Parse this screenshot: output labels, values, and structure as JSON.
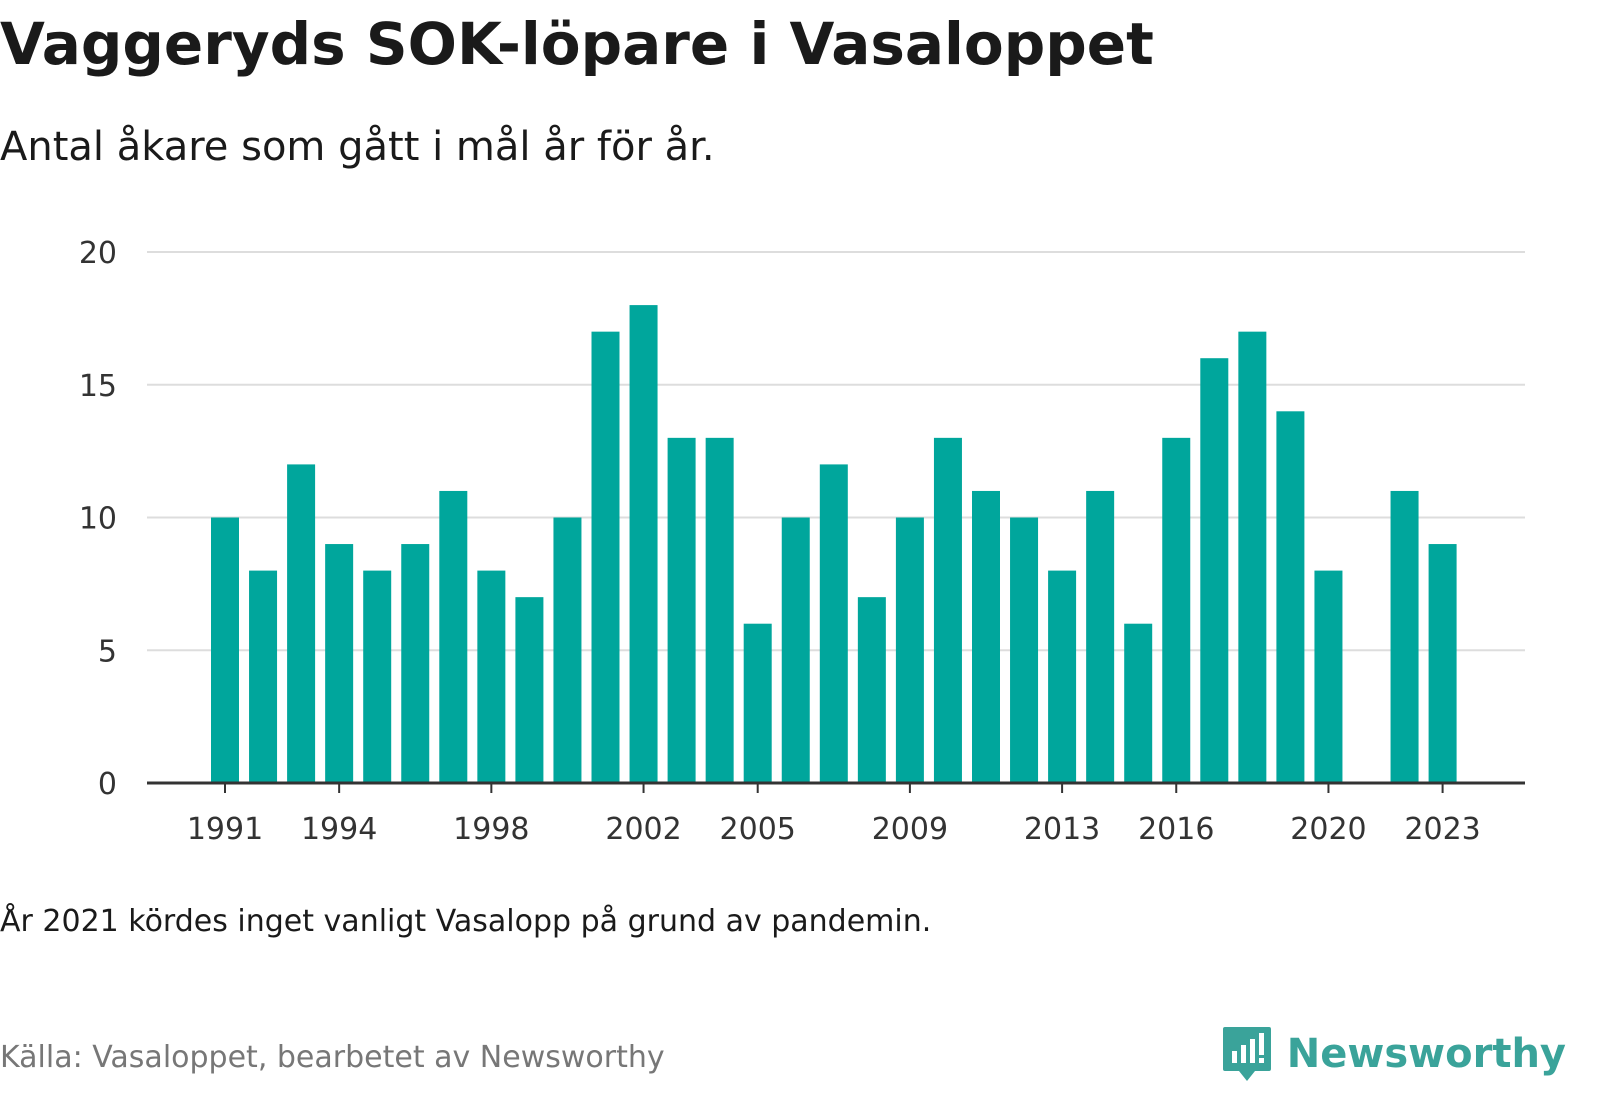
{
  "title": "Vaggeryds SOK-löpare i Vasaloppet",
  "subtitle": "Antal åkare som gått i mål år för år.",
  "note": "År 2021 kördes inget vanligt Vasalopp på grund av pandemin.",
  "source": "Källa: Vasaloppet, bearbetet av Newsworthy",
  "brand": {
    "name": "Newsworthy",
    "icon": "newsworthy-logo-icon"
  },
  "colors": {
    "bar": "#00a69c",
    "grid": "#dddddd",
    "axis": "#333333",
    "brand": "#3aa39a"
  },
  "chart_data": {
    "type": "bar",
    "x": [
      1991,
      1992,
      1993,
      1994,
      1995,
      1996,
      1997,
      1998,
      1999,
      2000,
      2001,
      2002,
      2003,
      2004,
      2005,
      2006,
      2007,
      2008,
      2009,
      2010,
      2011,
      2012,
      2013,
      2014,
      2015,
      2016,
      2017,
      2018,
      2019,
      2020,
      2021,
      2022,
      2023
    ],
    "values": [
      10,
      8,
      12,
      9,
      8,
      9,
      11,
      8,
      7,
      10,
      17,
      18,
      13,
      13,
      6,
      10,
      12,
      7,
      10,
      13,
      11,
      10,
      8,
      11,
      6,
      13,
      16,
      17,
      14,
      8,
      null,
      11,
      9
    ],
    "x_tick_labels": [
      "1991",
      "1994",
      "1998",
      "2002",
      "2005",
      "2009",
      "2013",
      "2016",
      "2020",
      "2023"
    ],
    "y_ticks": [
      0,
      5,
      10,
      15,
      20
    ],
    "ylim": [
      0,
      20
    ],
    "xlabel": "",
    "ylabel": "",
    "grid": true
  }
}
